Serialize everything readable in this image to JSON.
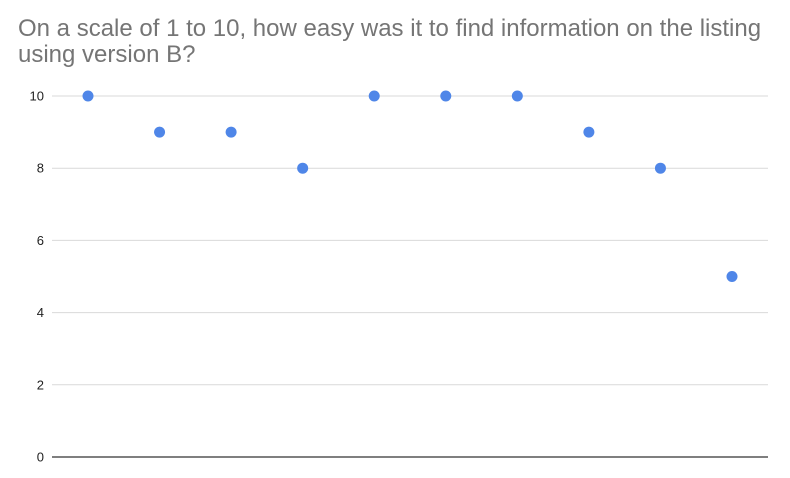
{
  "chart_data": {
    "type": "scatter",
    "title": "On a scale of 1 to 10, how easy was it to find information on the listing using version B?",
    "xlabel": "",
    "ylabel": "",
    "x": [
      1,
      2,
      3,
      4,
      5,
      6,
      7,
      8,
      9,
      10
    ],
    "y": [
      10,
      9,
      9,
      8,
      10,
      10,
      10,
      9,
      8,
      5
    ],
    "ylim": [
      0,
      10
    ],
    "yticks": [
      0,
      2,
      4,
      6,
      8,
      10
    ],
    "grid": true,
    "legend": "none",
    "colors": {
      "point": "#4f86e8",
      "grid": "#d9d9d9",
      "axis": "#333333",
      "title": "#757575"
    }
  }
}
